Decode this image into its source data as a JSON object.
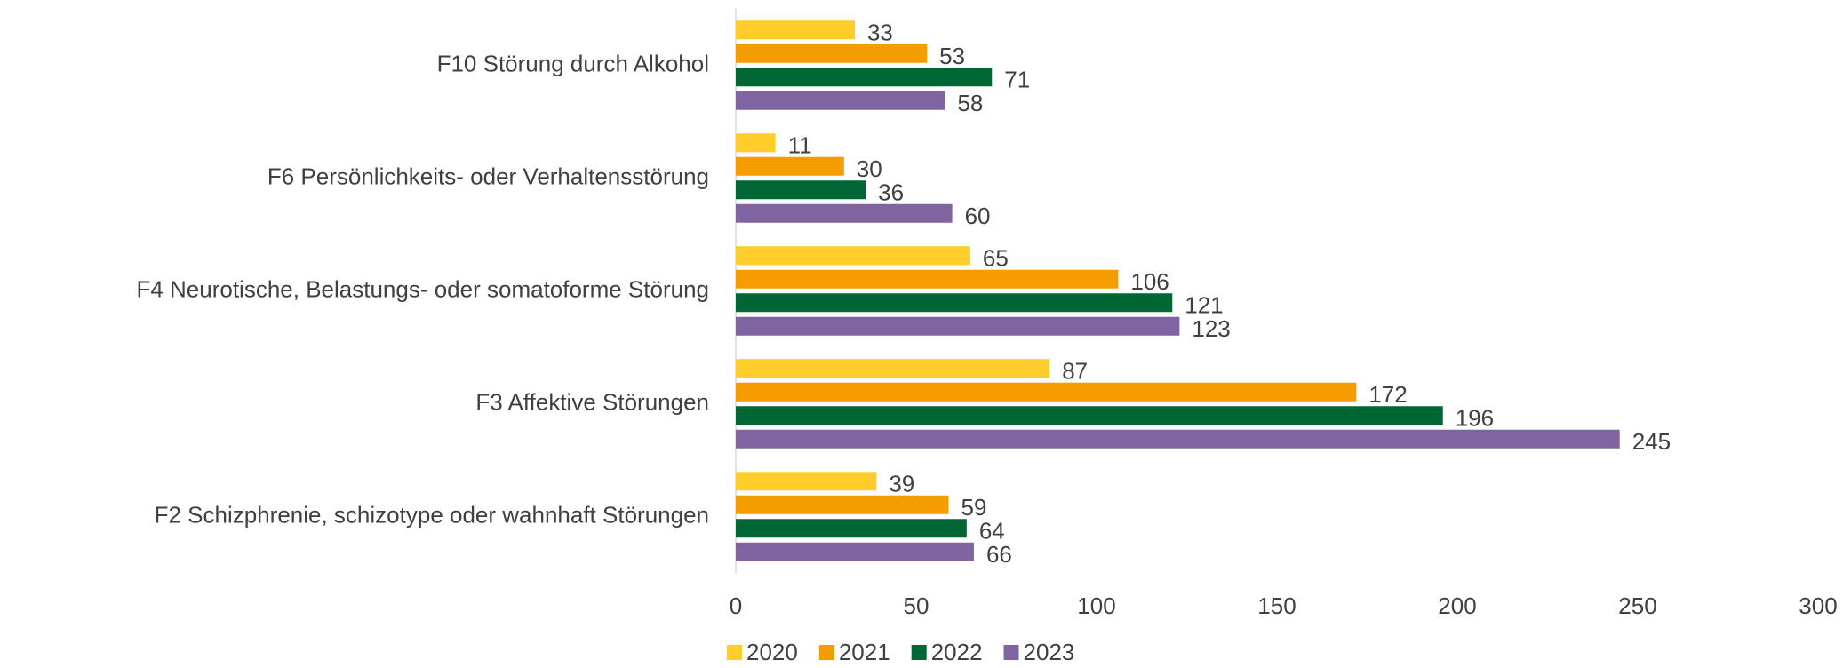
{
  "chart_data": {
    "type": "bar",
    "orientation": "horizontal",
    "categories": [
      "F10 Störung durch Alkohol",
      "F6 Persönlichkeits- oder Verhaltensstörung",
      "F4 Neurotische, Belastungs- oder somatoforme Störung",
      "F3 Affektive Störungen",
      "F2 Schizphrenie, schizotype oder wahnhaft Störungen"
    ],
    "series": [
      {
        "name": "2020",
        "color": "#FFCC29",
        "values": [
          33,
          11,
          65,
          87,
          39
        ]
      },
      {
        "name": "2021",
        "color": "#F59C00",
        "values": [
          53,
          30,
          106,
          172,
          59
        ]
      },
      {
        "name": "2022",
        "color": "#006633",
        "values": [
          71,
          36,
          121,
          196,
          64
        ]
      },
      {
        "name": "2023",
        "color": "#8064A2",
        "values": [
          58,
          60,
          123,
          245,
          66
        ]
      }
    ],
    "xlim": [
      0,
      300
    ],
    "xticks": [
      0,
      50,
      100,
      150,
      200,
      250,
      300
    ],
    "grid": false,
    "legend": "bottom"
  }
}
